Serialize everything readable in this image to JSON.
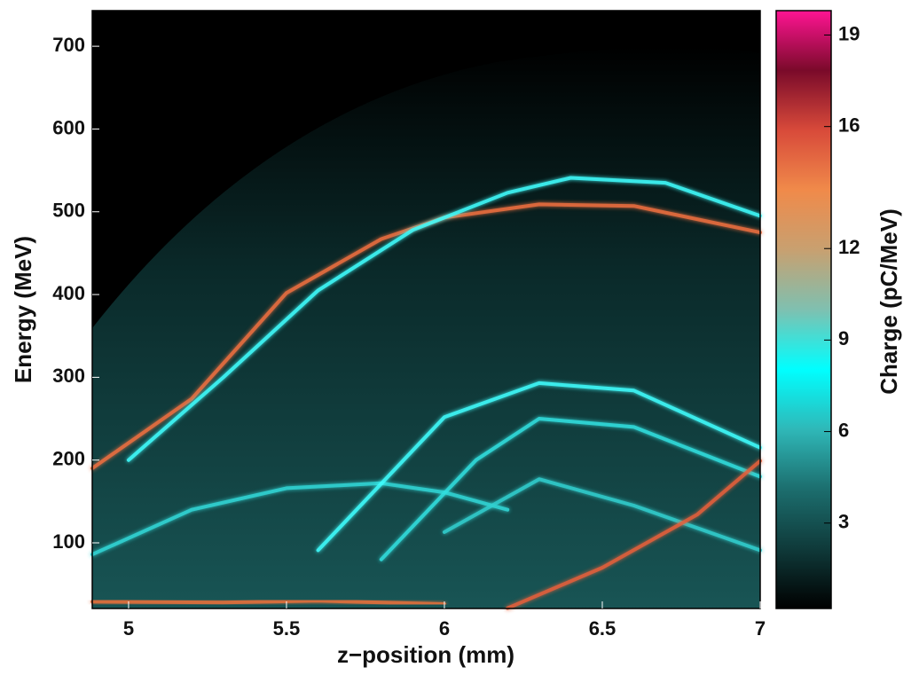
{
  "chart_data": {
    "type": "heatmap",
    "xlabel": "z−position (mm)",
    "ylabel": "Energy (MeV)",
    "colorbar_label": "Charge (pC/MeV)",
    "xlim": [
      4.885,
      7
    ],
    "xticks": [
      5,
      5.5,
      6,
      6.5,
      7
    ],
    "ylim": [
      20.7,
      743
    ],
    "yticks": [
      100,
      200,
      300,
      400,
      500,
      600,
      700
    ],
    "clim": [
      0.2,
      19.8
    ],
    "cticks": [
      3,
      6,
      9,
      12,
      16,
      19
    ],
    "colormap": [
      "#000000",
      "#0f3a3a",
      "#1c6e6e",
      "#2fb8b8",
      "#00ffff",
      "#7fc0b0",
      "#c8a070",
      "#f08a4a",
      "#d84a3a",
      "#7a0a2a",
      "#ff1493"
    ],
    "series": [
      {
        "color": "#f07040",
        "x": [
          4.885,
          5.2,
          5.5,
          5.8,
          6.0,
          6.3,
          6.6,
          7.0
        ],
        "values": [
          190,
          274,
          402,
          467,
          493,
          509,
          507,
          475
        ]
      },
      {
        "color": "#40ffff",
        "x": [
          5.0,
          5.3,
          5.6,
          5.9,
          6.2,
          6.4,
          6.7,
          7.0
        ],
        "values": [
          200,
          300,
          405,
          478,
          523,
          541,
          535,
          495
        ]
      },
      {
        "color": "#30d8d8",
        "x": [
          4.885,
          5.2,
          5.5,
          5.8,
          6.0,
          6.2
        ],
        "values": [
          86,
          140,
          166,
          172,
          161,
          140
        ]
      },
      {
        "color": "#40ffff",
        "x": [
          5.6,
          6.0,
          6.3,
          6.6,
          7.0
        ],
        "values": [
          91,
          252,
          293,
          284,
          215
        ]
      },
      {
        "color": "#30e0e0",
        "x": [
          5.8,
          6.1,
          6.3,
          6.6,
          7.0
        ],
        "values": [
          80,
          200,
          250,
          240,
          180
        ]
      },
      {
        "color": "#30d0d0",
        "x": [
          6.0,
          6.3,
          6.6,
          7.0
        ],
        "values": [
          113,
          177,
          145,
          91
        ]
      },
      {
        "color": "#e8603a",
        "x": [
          6.2,
          6.5,
          6.8,
          7.0
        ],
        "values": [
          21,
          70,
          134,
          199
        ]
      },
      {
        "color": "#e8703a",
        "x": [
          4.885,
          5.3,
          5.6,
          6.0
        ],
        "values": [
          29,
          28,
          30,
          26
        ]
      }
    ]
  }
}
